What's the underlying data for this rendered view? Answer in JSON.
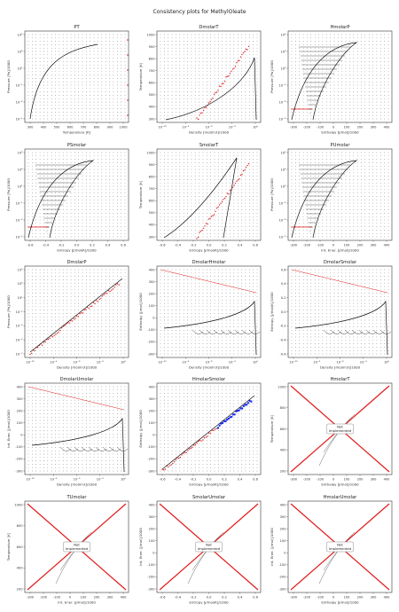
{
  "suptitle": "Consistency plots for MethylOleate",
  "not_impl": [
    "Not",
    "Implemented"
  ],
  "chart_data": [
    {
      "type": "scatter",
      "title": "PT",
      "xlabel": "Temperature [K]",
      "ylabel": "Pressure [Pa]/1000",
      "xticks": [
        "300",
        "400",
        "500",
        "600",
        "700",
        "800",
        "900",
        "1000"
      ],
      "yticks": [
        "10⁵",
        "10³",
        "10¹",
        "10⁻¹",
        "10⁻³",
        "10⁻⁵"
      ],
      "xlim": [
        250,
        1020
      ],
      "ylim": [
        -6,
        5.5
      ],
      "curve": "sat_pt",
      "notimpl": false
    },
    {
      "type": "scatter",
      "title": "DmolarT",
      "xlabel": "Density [mol/m3]/1000",
      "ylabel": "Temperature [K]",
      "xticks": [
        "10⁻¹²",
        "10⁻⁹",
        "10⁻⁶",
        "10⁻³",
        "10⁰"
      ],
      "yticks": [
        "1000",
        "900",
        "800",
        "700",
        "600",
        "500",
        "400",
        "300"
      ],
      "xlim": [
        -14,
        1.5
      ],
      "ylim": [
        250,
        1020
      ],
      "curve": "dome_dt",
      "notimpl": false
    },
    {
      "type": "scatter",
      "title": "HmolarP",
      "xlabel": "Enthalpy [J/mol]/1000",
      "ylabel": "Pressure [Pa]/1000",
      "xticks": [
        "-300",
        "-200",
        "-100",
        "0",
        "100",
        "200",
        "300",
        "400"
      ],
      "yticks": [
        "10⁵",
        "10³",
        "10¹",
        "10⁻¹",
        "10⁻³",
        "10⁻⁵"
      ],
      "xlim": [
        -300,
        420
      ],
      "ylim": [
        -6,
        5.5
      ],
      "curve": "dome_hp",
      "notimpl": false
    },
    {
      "type": "scatter",
      "title": "PSmolar",
      "xlabel": "Entropy [J/mol/K]/1000",
      "ylabel": "Pressure [Pa]/1000",
      "xticks": [
        "-0.6",
        "-0.4",
        "-0.2",
        "0.0",
        "0.2",
        "0.4",
        "0.6"
      ],
      "yticks": [
        "10⁵",
        "10³",
        "10¹",
        "10⁻¹",
        "10⁻³",
        "10⁻⁵"
      ],
      "xlim": [
        -0.72,
        0.75
      ],
      "ylim": [
        -6,
        5.5
      ],
      "curve": "dome_sp",
      "notimpl": false
    },
    {
      "type": "scatter",
      "title": "SmolarT",
      "xlabel": "Entropy [J/mol/K]/1000",
      "ylabel": "Temperature [K]",
      "xticks": [
        "-0.6",
        "-0.4",
        "-0.2",
        "0.0",
        "0.2",
        "0.4",
        "0.6"
      ],
      "yticks": [
        "1000",
        "900",
        "800",
        "700",
        "600",
        "500",
        "400",
        "300"
      ],
      "xlim": [
        -0.72,
        0.75
      ],
      "ylim": [
        250,
        1020
      ],
      "curve": "dome_st",
      "notimpl": false
    },
    {
      "type": "scatter",
      "title": "PUmolar",
      "xlabel": "Int. Ener. [J/mol]/1000",
      "ylabel": "Pressure [Pa]/1000",
      "xticks": [
        "-300",
        "-200",
        "-100",
        "0",
        "100",
        "200",
        "300",
        "400"
      ],
      "yticks": [
        "10⁵",
        "10³",
        "10¹",
        "10⁻¹",
        "10⁻³",
        "10⁻⁵"
      ],
      "xlim": [
        -300,
        420
      ],
      "ylim": [
        -6,
        5.5
      ],
      "curve": "dome_hp",
      "notimpl": false
    },
    {
      "type": "scatter",
      "title": "DmolarP",
      "xlabel": "Density [mol/m3]/1000",
      "ylabel": "Pressure [Pa]/1000",
      "xticks": [
        "10⁻¹²",
        "10⁻⁹",
        "10⁻⁶",
        "10⁻³",
        "10⁰"
      ],
      "yticks": [
        "10⁵",
        "10³",
        "10¹",
        "10⁻¹",
        "10⁻³",
        "10⁻⁵",
        "10⁻⁷"
      ],
      "xlim": [
        -14,
        1.5
      ],
      "ylim": [
        -8,
        5.5
      ],
      "curve": "diag_dp",
      "notimpl": false
    },
    {
      "type": "scatter",
      "title": "DmolarHmolar",
      "xlabel": "Density [mol/m3]/1000",
      "ylabel": "Enthalpy [J/mol]/1000",
      "xticks": [
        "10⁻¹²",
        "10⁻⁹",
        "10⁻⁶",
        "10⁻³",
        "10⁰"
      ],
      "yticks": [
        "400",
        "300",
        "200",
        "100",
        "0",
        "-100",
        "-200",
        "-300"
      ],
      "xlim": [
        -14,
        1.5
      ],
      "ylim": [
        -300,
        420
      ],
      "curve": "dome_dh",
      "notimpl": false
    },
    {
      "type": "scatter",
      "title": "DmolarSmolar",
      "xlabel": "Density [mol/m3]/1000",
      "ylabel": "Entropy [J/mol/K]/1000",
      "xticks": [
        "10⁻¹²",
        "10⁻⁹",
        "10⁻⁶",
        "10⁻³",
        "10⁰"
      ],
      "yticks": [
        "0.6",
        "0.4",
        "0.2",
        "0.0",
        "-0.2",
        "-0.4",
        "-0.6"
      ],
      "xlim": [
        -14,
        1.5
      ],
      "ylim": [
        -0.75,
        0.75
      ],
      "curve": "dome_ds",
      "notimpl": false
    },
    {
      "type": "scatter",
      "title": "DmolarUmolar",
      "xlabel": "Density [mol/m3]/1000",
      "ylabel": "Int. Ener. [J/mol]/1000",
      "xticks": [
        "10⁻¹²",
        "10⁻⁹",
        "10⁻⁶",
        "10⁻³",
        "10⁰"
      ],
      "yticks": [
        "400",
        "300",
        "200",
        "100",
        "0",
        "-100",
        "-200",
        "-300"
      ],
      "xlim": [
        -14,
        1.5
      ],
      "ylim": [
        -300,
        420
      ],
      "curve": "dome_dh",
      "notimpl": false
    },
    {
      "type": "scatter",
      "title": "HmolarSmolar",
      "xlabel": "Entropy [J/mol/K]/1000",
      "ylabel": "Enthalpy [J/mol]/1000",
      "xticks": [
        "-0.6",
        "-0.4",
        "-0.2",
        "0.0",
        "0.2",
        "0.4",
        "0.6"
      ],
      "yticks": [
        "400",
        "300",
        "200",
        "100",
        "0",
        "-100",
        "-200",
        "-300"
      ],
      "xlim": [
        -0.72,
        0.75
      ],
      "ylim": [
        -300,
        420
      ],
      "curve": "diag_hs",
      "notimpl": false
    },
    {
      "type": "scatter",
      "title": "HmolarT",
      "xlabel": "Enthalpy [J/mol]/1000",
      "ylabel": "Temperature [K]",
      "xticks": [
        "-300",
        "-200",
        "-100",
        "0",
        "100",
        "200",
        "300",
        "400"
      ],
      "yticks": [
        "1000",
        "800",
        "600",
        "400",
        "200"
      ],
      "xlim": [
        -330,
        440
      ],
      "ylim": [
        150,
        1070
      ],
      "curve": "ni",
      "notimpl": true
    },
    {
      "type": "scatter",
      "title": "TUmolar",
      "xlabel": "Int. Ener. [J/mol]/1000",
      "ylabel": "Temperature [K]",
      "xticks": [
        "-300",
        "-200",
        "-100",
        "0",
        "100",
        "200",
        "300",
        "400"
      ],
      "yticks": [
        "1000",
        "800",
        "600",
        "400",
        "200"
      ],
      "xlim": [
        -330,
        440
      ],
      "ylim": [
        150,
        1070
      ],
      "curve": "ni",
      "notimpl": true
    },
    {
      "type": "scatter",
      "title": "SmolarUmolar",
      "xlabel": "Entropy [J/mol/K]/1000",
      "ylabel": "Int. Ener. [J/mol]/1000",
      "xticks": [
        "-0.6",
        "-0.4",
        "-0.2",
        "0.0",
        "0.2",
        "0.4",
        "0.6"
      ],
      "yticks": [
        "400",
        "300",
        "200",
        "100",
        "0",
        "-100",
        "-200",
        "-300"
      ],
      "xlim": [
        -0.72,
        0.75
      ],
      "ylim": [
        -330,
        440
      ],
      "curve": "ni",
      "notimpl": true
    },
    {
      "type": "scatter",
      "title": "HmolarUmolar",
      "xlabel": "Enthalpy [J/mol]/1000",
      "ylabel": "Int. Ener. [J/mol]/1000",
      "xticks": [
        "-300",
        "-200",
        "-100",
        "0",
        "100",
        "200",
        "300",
        "400"
      ],
      "yticks": [
        "400",
        "300",
        "200",
        "100",
        "0",
        "-100",
        "-200",
        "-300"
      ],
      "xlim": [
        -330,
        440
      ],
      "ylim": [
        -330,
        440
      ],
      "curve": "ni",
      "notimpl": true
    }
  ]
}
